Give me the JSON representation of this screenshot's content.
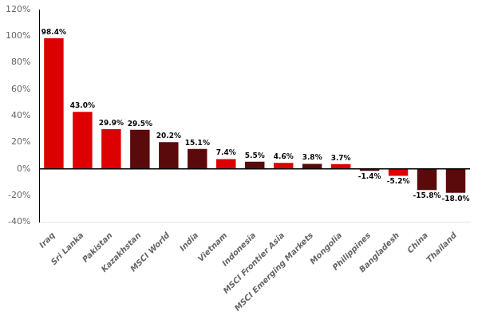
{
  "chart_data": {
    "type": "bar",
    "categories": [
      "Iraq",
      "Sri Lanka",
      "Pakistan",
      "Kazakhstan",
      "MSCI World",
      "India",
      "Vietnam",
      "Indonesia",
      "MSCI Frontier Asia",
      "MSCI Emerging Markets",
      "Mongolia",
      "Philippines",
      "Bangladesh",
      "China",
      "Thailand"
    ],
    "values": [
      98.4,
      43.0,
      29.9,
      29.5,
      20.2,
      15.1,
      7.4,
      5.5,
      4.6,
      3.8,
      3.7,
      -1.4,
      -5.2,
      -15.8,
      -18.0
    ],
    "value_labels": [
      "98.4%",
      "43.0%",
      "29.9%",
      "29.5%",
      "20.2%",
      "15.1%",
      "7.4%",
      "5.5%",
      "4.6%",
      "3.8%",
      "3.7%",
      "-1.4%",
      "-5.2%",
      "-15.8%",
      "-18.0%"
    ],
    "colors": [
      "#dd0000",
      "#dd0000",
      "#dd0000",
      "#5a0a0a",
      "#5a0a0a",
      "#5a0a0a",
      "#dd0000",
      "#5a0a0a",
      "#dd0000",
      "#5a0a0a",
      "#dd0000",
      "#5a0a0a",
      "#dd0000",
      "#5a0a0a",
      "#5a0a0a"
    ],
    "ylim": [
      -40,
      120
    ],
    "yticks": [
      {
        "value": -40,
        "label": "-40%"
      },
      {
        "value": -20,
        "label": "-20%"
      },
      {
        "value": 0,
        "label": "0%"
      },
      {
        "value": 20,
        "label": "20%"
      },
      {
        "value": 40,
        "label": "40%"
      },
      {
        "value": 60,
        "label": "60%"
      },
      {
        "value": 80,
        "label": "80%"
      },
      {
        "value": 100,
        "label": "100%"
      },
      {
        "value": 120,
        "label": "120%"
      }
    ],
    "grid": false,
    "data_labels": true
  }
}
